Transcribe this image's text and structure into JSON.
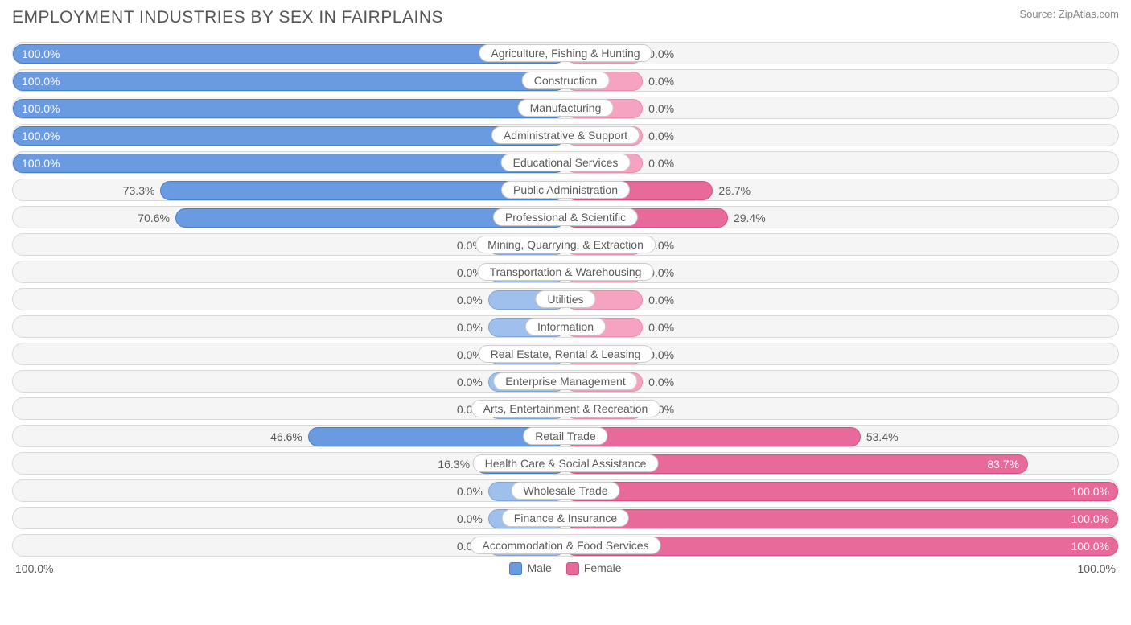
{
  "title": "EMPLOYMENT INDUSTRIES BY SEX IN FAIRPLAINS",
  "source": "Source: ZipAtlas.com",
  "axis_left": "100.0%",
  "axis_right": "100.0%",
  "legend": {
    "male": "Male",
    "female": "Female"
  },
  "colors": {
    "male_full": "#6a9ae0",
    "male_dim": "#9fbfec",
    "female_full": "#e86a9a",
    "female_dim": "#f5a3c0",
    "row_bg": "#f5f5f5",
    "row_border": "#d8d8d8",
    "text": "#5a5a5a"
  },
  "chart": {
    "type": "diverging-bar",
    "min_bar_pct": 14,
    "inside_label_threshold": 80,
    "rows": [
      {
        "label": "Agriculture, Fishing & Hunting",
        "male": 100.0,
        "female": 0.0
      },
      {
        "label": "Construction",
        "male": 100.0,
        "female": 0.0
      },
      {
        "label": "Manufacturing",
        "male": 100.0,
        "female": 0.0
      },
      {
        "label": "Administrative & Support",
        "male": 100.0,
        "female": 0.0
      },
      {
        "label": "Educational Services",
        "male": 100.0,
        "female": 0.0
      },
      {
        "label": "Public Administration",
        "male": 73.3,
        "female": 26.7
      },
      {
        "label": "Professional & Scientific",
        "male": 70.6,
        "female": 29.4
      },
      {
        "label": "Mining, Quarrying, & Extraction",
        "male": 0.0,
        "female": 0.0
      },
      {
        "label": "Transportation & Warehousing",
        "male": 0.0,
        "female": 0.0
      },
      {
        "label": "Utilities",
        "male": 0.0,
        "female": 0.0
      },
      {
        "label": "Information",
        "male": 0.0,
        "female": 0.0
      },
      {
        "label": "Real Estate, Rental & Leasing",
        "male": 0.0,
        "female": 0.0
      },
      {
        "label": "Enterprise Management",
        "male": 0.0,
        "female": 0.0
      },
      {
        "label": "Arts, Entertainment & Recreation",
        "male": 0.0,
        "female": 0.0
      },
      {
        "label": "Retail Trade",
        "male": 46.6,
        "female": 53.4
      },
      {
        "label": "Health Care & Social Assistance",
        "male": 16.3,
        "female": 83.7
      },
      {
        "label": "Wholesale Trade",
        "male": 0.0,
        "female": 100.0
      },
      {
        "label": "Finance & Insurance",
        "male": 0.0,
        "female": 100.0
      },
      {
        "label": "Accommodation & Food Services",
        "male": 0.0,
        "female": 100.0
      }
    ]
  }
}
